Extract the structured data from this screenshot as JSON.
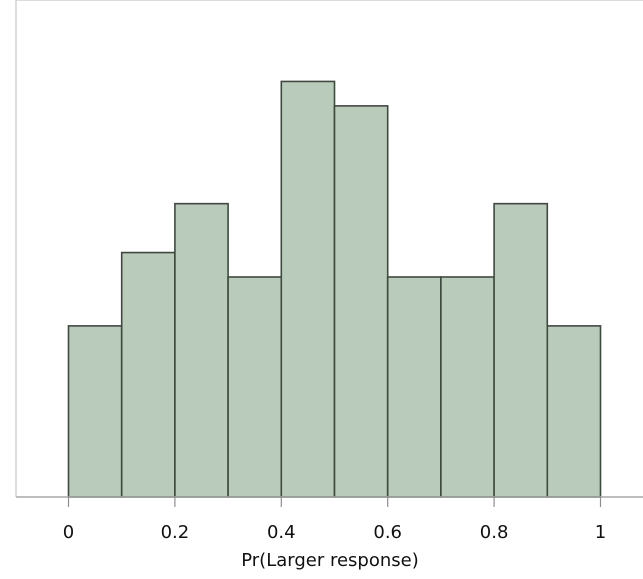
{
  "chart_data": {
    "type": "bar",
    "categories": [
      "0-0.1",
      "0.1-0.2",
      "0.2-0.3",
      "0.3-0.4",
      "0.4-0.5",
      "0.5-0.6",
      "0.6-0.7",
      "0.7-0.8",
      "0.8-0.9",
      "0.9-1"
    ],
    "bins": [
      {
        "start": 0.0,
        "end": 0.1,
        "value": 7
      },
      {
        "start": 0.1,
        "end": 0.2,
        "value": 10
      },
      {
        "start": 0.2,
        "end": 0.3,
        "value": 12
      },
      {
        "start": 0.3,
        "end": 0.4,
        "value": 9
      },
      {
        "start": 0.4,
        "end": 0.5,
        "value": 17
      },
      {
        "start": 0.5,
        "end": 0.6,
        "value": 16
      },
      {
        "start": 0.6,
        "end": 0.7,
        "value": 9
      },
      {
        "start": 0.7,
        "end": 0.8,
        "value": 9
      },
      {
        "start": 0.8,
        "end": 0.9,
        "value": 12
      },
      {
        "start": 0.9,
        "end": 1.0,
        "value": 7
      }
    ],
    "xlabel": "Pr(Larger response)",
    "ylabel": "",
    "title": "",
    "xlim": [
      -0.1,
      1.08
    ],
    "ylim": [
      0,
      18
    ],
    "x_ticks": [
      "0",
      "0.2",
      "0.4",
      "0.6",
      "0.8",
      "1"
    ],
    "grid": false,
    "legend": "none",
    "colors": {
      "bar_fill": "#b9cbbb",
      "bar_stroke": "#3f4a3f",
      "axis": "#a8a8a8",
      "frame": "#c8c8c8"
    }
  }
}
